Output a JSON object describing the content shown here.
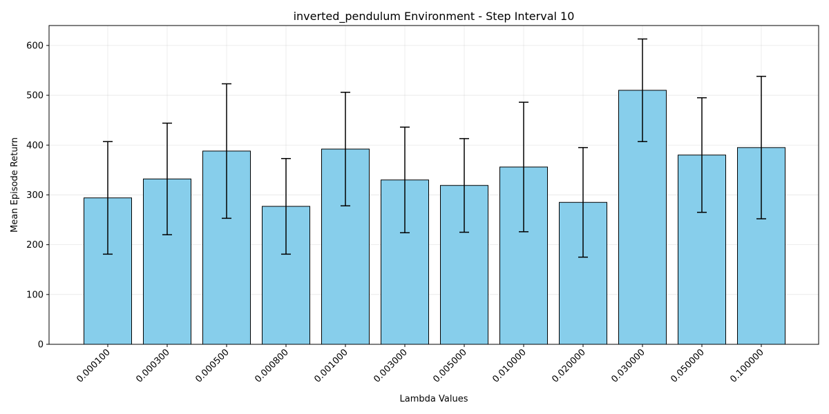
{
  "chart_data": {
    "type": "bar",
    "title": "inverted_pendulum Environment - Step Interval 10",
    "xlabel": "Lambda Values",
    "ylabel": "Mean Episode Return",
    "categories": [
      "0.000100",
      "0.000300",
      "0.000500",
      "0.000800",
      "0.001000",
      "0.003000",
      "0.005000",
      "0.010000",
      "0.020000",
      "0.030000",
      "0.050000",
      "0.100000"
    ],
    "values": [
      294,
      332,
      388,
      277,
      392,
      330,
      319,
      356,
      285,
      510,
      380,
      395
    ],
    "error": [
      113,
      112,
      135,
      96,
      114,
      106,
      94,
      130,
      110,
      103,
      115,
      143
    ],
    "ylim": [
      0,
      640
    ],
    "yticks": [
      0,
      100,
      200,
      300,
      400,
      500,
      600
    ],
    "grid": true,
    "bar_color": "#87ceeb",
    "edge_color": "#000000"
  }
}
